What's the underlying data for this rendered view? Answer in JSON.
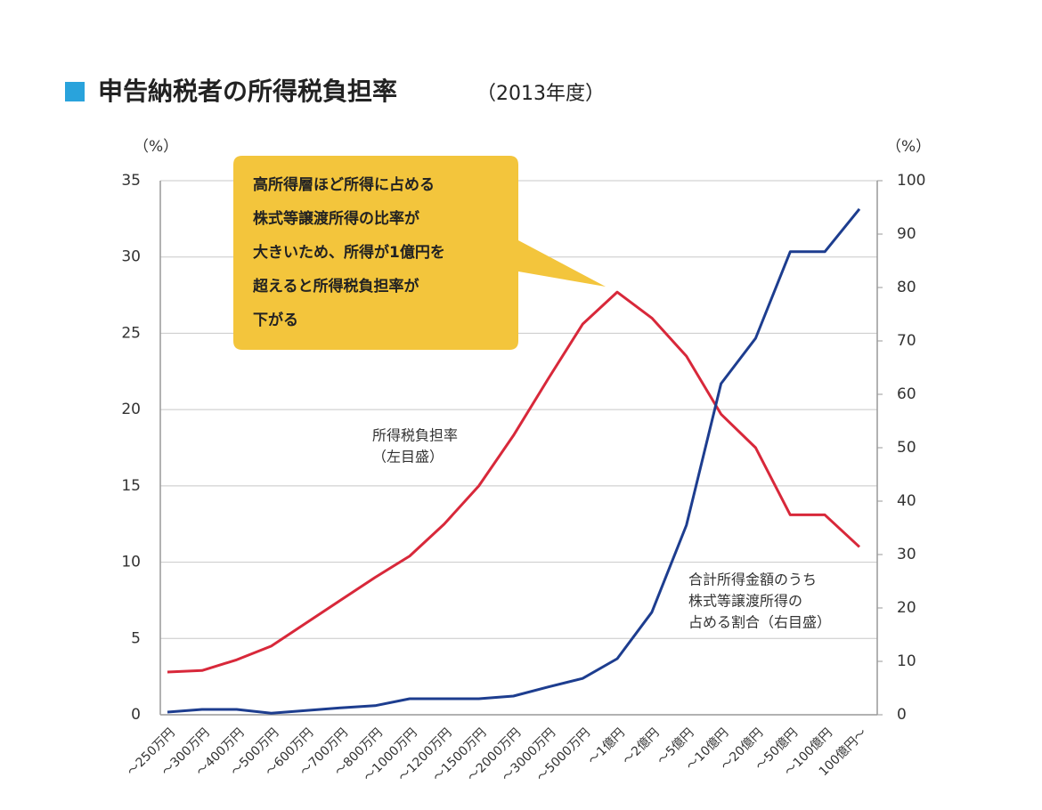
{
  "chart_data": {
    "type": "line",
    "title": "申告納税者の所得税負担率",
    "subtitle": "（2013年度）",
    "y_unit_label": "（%）",
    "y2_unit_label": "（%）",
    "categories": [
      "～250万円",
      "～300万円",
      "～400万円",
      "～500万円",
      "～600万円",
      "～700万円",
      "～800万円",
      "～1000万円",
      "～1200万円",
      "～1500万円",
      "～2000万円",
      "～3000万円",
      "～5000万円",
      "～1億円",
      "～2億円",
      "～5億円",
      "～10億円",
      "～20億円",
      "～50億円",
      "～100億円",
      "100億円～"
    ],
    "series": [
      {
        "label": [
          "所得税負担率",
          "（左目盛）"
        ],
        "color": "#d8283a",
        "axis": "y",
        "values": [
          2.8,
          2.9,
          3.6,
          4.5,
          6.0,
          7.5,
          9.0,
          10.4,
          12.5,
          15.0,
          18.3,
          22.0,
          25.6,
          27.7,
          26.0,
          23.5,
          19.7,
          17.5,
          13.1,
          13.1,
          11.0
        ]
      },
      {
        "label": [
          "合計所得金額のうち",
          "株式等譲渡所得の",
          "占める割合（右目盛）"
        ],
        "color": "#1d3d8f",
        "axis": "y2",
        "values": [
          0.5,
          1.0,
          1.0,
          0.3,
          0.8,
          1.3,
          1.7,
          3.0,
          3.0,
          3.0,
          3.5,
          5.2,
          6.8,
          10.5,
          19.2,
          35.5,
          62,
          70.5,
          86.7,
          86.7,
          94.7
        ]
      }
    ],
    "callout": [
      "高所得層ほど所得に占める",
      "株式等譲渡所得の比率が",
      "大きいため、所得が1億円を",
      "超えると所得税負担率が",
      "下がる"
    ],
    "ylim": [
      0,
      35
    ],
    "yticks": [
      0,
      5,
      10,
      15,
      20,
      25,
      30,
      35
    ],
    "y2lim": [
      0,
      100
    ],
    "y2ticks": [
      0,
      10,
      20,
      30,
      40,
      50,
      60,
      70,
      80,
      90,
      100
    ],
    "grid": true
  }
}
